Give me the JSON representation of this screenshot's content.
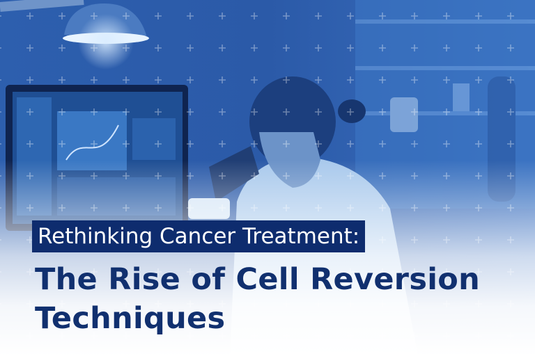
{
  "headline": {
    "highlight": "Rethinking Cancer Treatment:",
    "title_lines": [
      "The Rise of Cell Reversion",
      "Techniques"
    ]
  }
}
